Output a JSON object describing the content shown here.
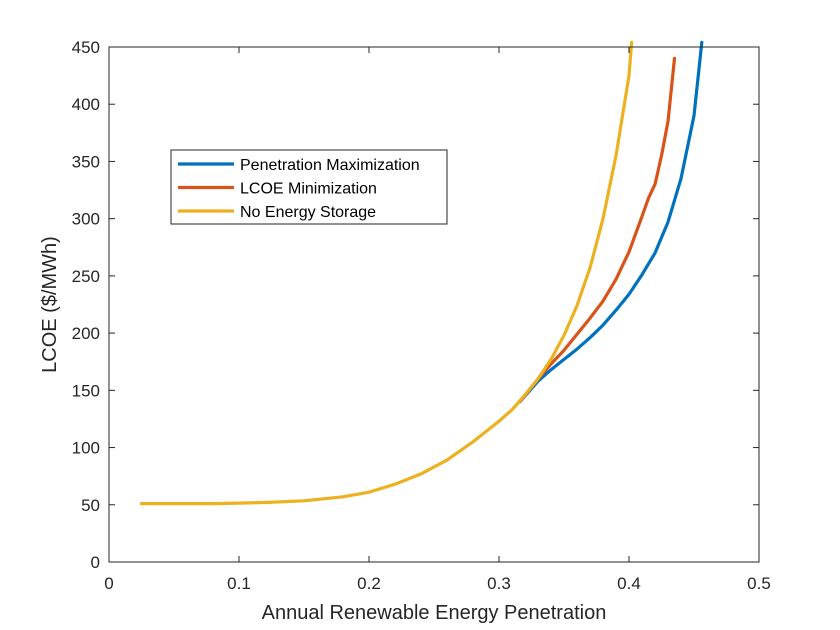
{
  "chart_data": {
    "type": "line",
    "xlabel": "Annual Renewable Energy Penetration",
    "ylabel": "LCOE ($/MWh)",
    "xlim": [
      0,
      0.5
    ],
    "ylim": [
      0,
      450
    ],
    "x_ticks": [
      "0",
      "0.1",
      "0.2",
      "0.3",
      "0.4",
      "0.5"
    ],
    "y_ticks": [
      "0",
      "50",
      "100",
      "150",
      "200",
      "250",
      "300",
      "350",
      "400",
      "450"
    ],
    "x_tick_values": [
      0,
      0.1,
      0.2,
      0.3,
      0.4,
      0.5
    ],
    "y_tick_values": [
      0,
      50,
      100,
      150,
      200,
      250,
      300,
      350,
      400,
      450
    ],
    "grid": false,
    "legend_position": "upper-left",
    "series": [
      {
        "name": "Penetration Maximization",
        "color": "#0072BD",
        "points": [
          [
            0.316,
            140
          ],
          [
            0.33,
            158
          ],
          [
            0.34,
            168
          ],
          [
            0.35,
            177
          ],
          [
            0.36,
            186
          ],
          [
            0.37,
            196
          ],
          [
            0.38,
            207
          ],
          [
            0.39,
            220
          ],
          [
            0.4,
            234
          ],
          [
            0.41,
            251
          ],
          [
            0.42,
            270
          ],
          [
            0.43,
            297
          ],
          [
            0.44,
            335
          ],
          [
            0.45,
            390
          ],
          [
            0.456,
            454
          ]
        ]
      },
      {
        "name": "LCOE Minimization",
        "color": "#D95319",
        "points": [
          [
            0.316,
            140
          ],
          [
            0.33,
            160
          ],
          [
            0.34,
            173
          ],
          [
            0.35,
            185
          ],
          [
            0.36,
            199
          ],
          [
            0.37,
            213
          ],
          [
            0.38,
            228
          ],
          [
            0.39,
            247
          ],
          [
            0.4,
            271
          ],
          [
            0.41,
            302
          ],
          [
            0.415,
            318
          ],
          [
            0.42,
            330
          ],
          [
            0.425,
            355
          ],
          [
            0.43,
            385
          ],
          [
            0.435,
            440
          ]
        ]
      },
      {
        "name": "No Energy Storage",
        "color": "#EDB120",
        "points": [
          [
            0.025,
            51
          ],
          [
            0.05,
            51
          ],
          [
            0.08,
            51
          ],
          [
            0.1,
            51.5
          ],
          [
            0.12,
            52
          ],
          [
            0.15,
            53.5
          ],
          [
            0.18,
            57
          ],
          [
            0.2,
            61
          ],
          [
            0.22,
            68
          ],
          [
            0.24,
            77
          ],
          [
            0.26,
            89
          ],
          [
            0.28,
            105
          ],
          [
            0.3,
            123
          ],
          [
            0.31,
            133
          ],
          [
            0.32,
            146
          ],
          [
            0.33,
            160
          ],
          [
            0.34,
            177
          ],
          [
            0.35,
            198
          ],
          [
            0.36,
            224
          ],
          [
            0.37,
            257
          ],
          [
            0.38,
            300
          ],
          [
            0.39,
            355
          ],
          [
            0.4,
            425
          ],
          [
            0.402,
            454
          ]
        ]
      }
    ]
  }
}
